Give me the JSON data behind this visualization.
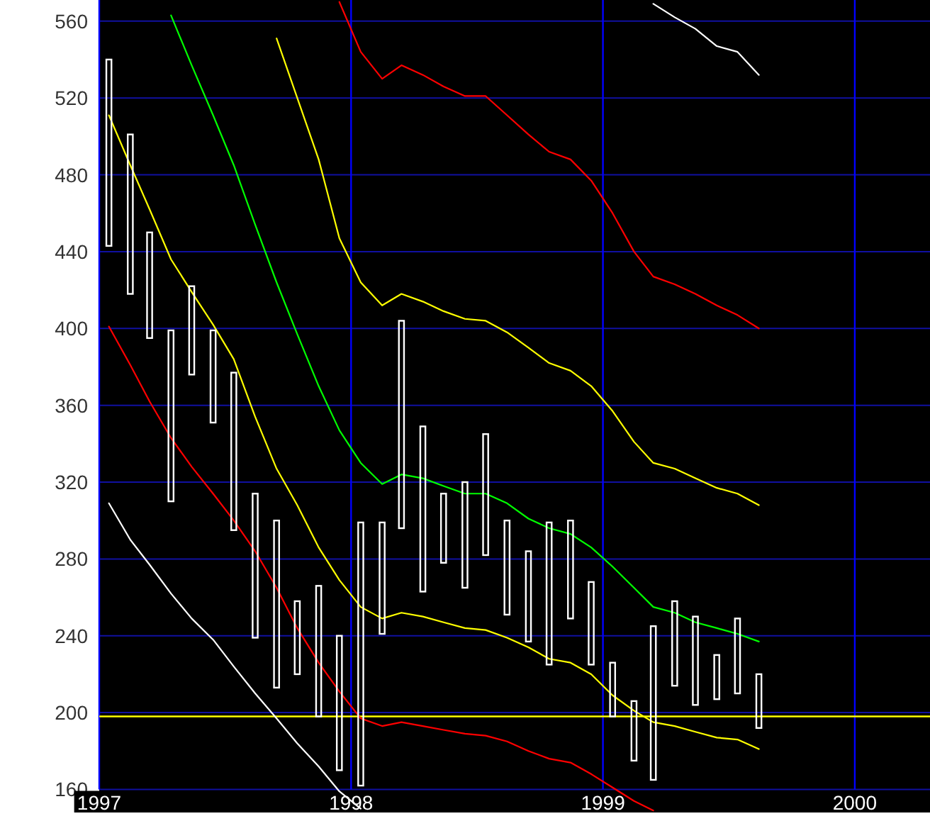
{
  "chart_data": {
    "type": "bar",
    "x": [
      "1997-01-15",
      "1997-02-15",
      "1997-03-15",
      "1997-04-15",
      "1997-05-15",
      "1997-06-15",
      "1997-07-15",
      "1997-08-15",
      "1997-09-15",
      "1997-10-15",
      "1997-11-15",
      "1997-12-15",
      "1998-01-15",
      "1998-02-15",
      "1998-03-15",
      "1998-04-15",
      "1998-05-15",
      "1998-06-15",
      "1998-07-15",
      "1998-08-15",
      "1998-09-15",
      "1998-10-15",
      "1998-11-15",
      "1998-12-15",
      "1999-01-15",
      "1999-02-15",
      "1999-03-15",
      "1999-04-15",
      "1999-05-15",
      "1999-06-15",
      "1999-07-15",
      "1999-08-15"
    ],
    "xlim": [
      "1997-01",
      "2000-04-19"
    ],
    "xticks": [
      {
        "value": "1997",
        "label": "1997"
      },
      {
        "value": "1998",
        "label": "1998"
      },
      {
        "value": "1999",
        "label": "1999"
      },
      {
        "value": "2000",
        "label": "2000"
      }
    ],
    "ylim": [
      148,
      571
    ],
    "yticks": [
      160,
      200,
      240,
      280,
      320,
      360,
      400,
      440,
      480,
      520,
      560
    ],
    "grid": true,
    "ref_lines": [
      {
        "axis": "y",
        "value": 198,
        "color": "#ffff00"
      }
    ],
    "series": [
      {
        "type": "line",
        "color": "#ffffff",
        "values": [
          null,
          null,
          null,
          null,
          null,
          null,
          null,
          null,
          null,
          null,
          null,
          null,
          null,
          null,
          null,
          null,
          null,
          null,
          null,
          null,
          null,
          null,
          null,
          null,
          null,
          null,
          569,
          562,
          556,
          547,
          544,
          532
        ]
      },
      {
        "type": "line",
        "color": "#ff0000",
        "values": [
          null,
          null,
          null,
          null,
          null,
          null,
          null,
          null,
          null,
          null,
          null,
          570,
          544,
          530,
          537,
          532,
          526,
          521,
          521,
          511,
          501,
          492,
          488,
          477,
          460,
          440,
          427,
          423,
          418,
          412,
          407,
          400
        ]
      },
      {
        "type": "line",
        "color": "#ffff00",
        "values": [
          null,
          null,
          null,
          null,
          null,
          null,
          null,
          null,
          551,
          520,
          488,
          447,
          424,
          412,
          418,
          414,
          409,
          405,
          404,
          398,
          390,
          382,
          378,
          370,
          357,
          341,
          330,
          327,
          322,
          317,
          314,
          308
        ]
      },
      {
        "type": "line",
        "color": "#00ff00",
        "values": [
          null,
          null,
          null,
          563,
          537,
          511,
          485,
          454,
          424,
          397,
          370,
          347,
          330,
          319,
          324,
          322,
          318,
          314,
          314,
          309,
          301,
          296,
          293,
          286,
          276,
          265,
          255,
          252,
          247,
          244,
          241,
          237
        ]
      },
      {
        "type": "line",
        "color": "#ffff00",
        "values": [
          511,
          485,
          462,
          436,
          419,
          402,
          384,
          354,
          327,
          308,
          286,
          269,
          255,
          249,
          252,
          250,
          247,
          244,
          243,
          239,
          234,
          228,
          226,
          220,
          209,
          201,
          195,
          193,
          190,
          187,
          186,
          181
        ]
      },
      {
        "type": "line",
        "color": "#ff0000",
        "values": [
          401,
          381,
          362,
          343,
          328,
          314,
          300,
          284,
          265,
          244,
          226,
          211,
          197,
          193,
          195,
          193,
          191,
          189,
          188,
          185,
          180,
          176,
          174,
          168,
          161,
          154,
          149,
          null,
          null,
          null,
          null,
          null
        ]
      },
      {
        "type": "line",
        "color": "#ffffff",
        "values": [
          309,
          290,
          277,
          262,
          249,
          238,
          224,
          210,
          197,
          184,
          172,
          159,
          150,
          null,
          null,
          null,
          null,
          null,
          null,
          null,
          null,
          null,
          null,
          null,
          null,
          null,
          null,
          null,
          null,
          null,
          null,
          null
        ]
      },
      {
        "color": "#ffffff",
        "base": [
          443,
          418,
          395,
          310,
          376,
          351,
          295,
          239,
          213,
          220,
          198,
          170,
          162,
          241,
          296,
          263,
          278,
          265,
          282,
          251,
          237,
          225,
          249,
          225,
          198,
          175,
          165,
          214,
          204,
          207,
          210,
          192
        ],
        "values": [
          97,
          83,
          55,
          89,
          46,
          48,
          82,
          75,
          87,
          38,
          68,
          70,
          137,
          58,
          108,
          86,
          36,
          55,
          63,
          49,
          47,
          74,
          51,
          43,
          28,
          31,
          80,
          44,
          46,
          23,
          39,
          28
        ]
      }
    ]
  }
}
